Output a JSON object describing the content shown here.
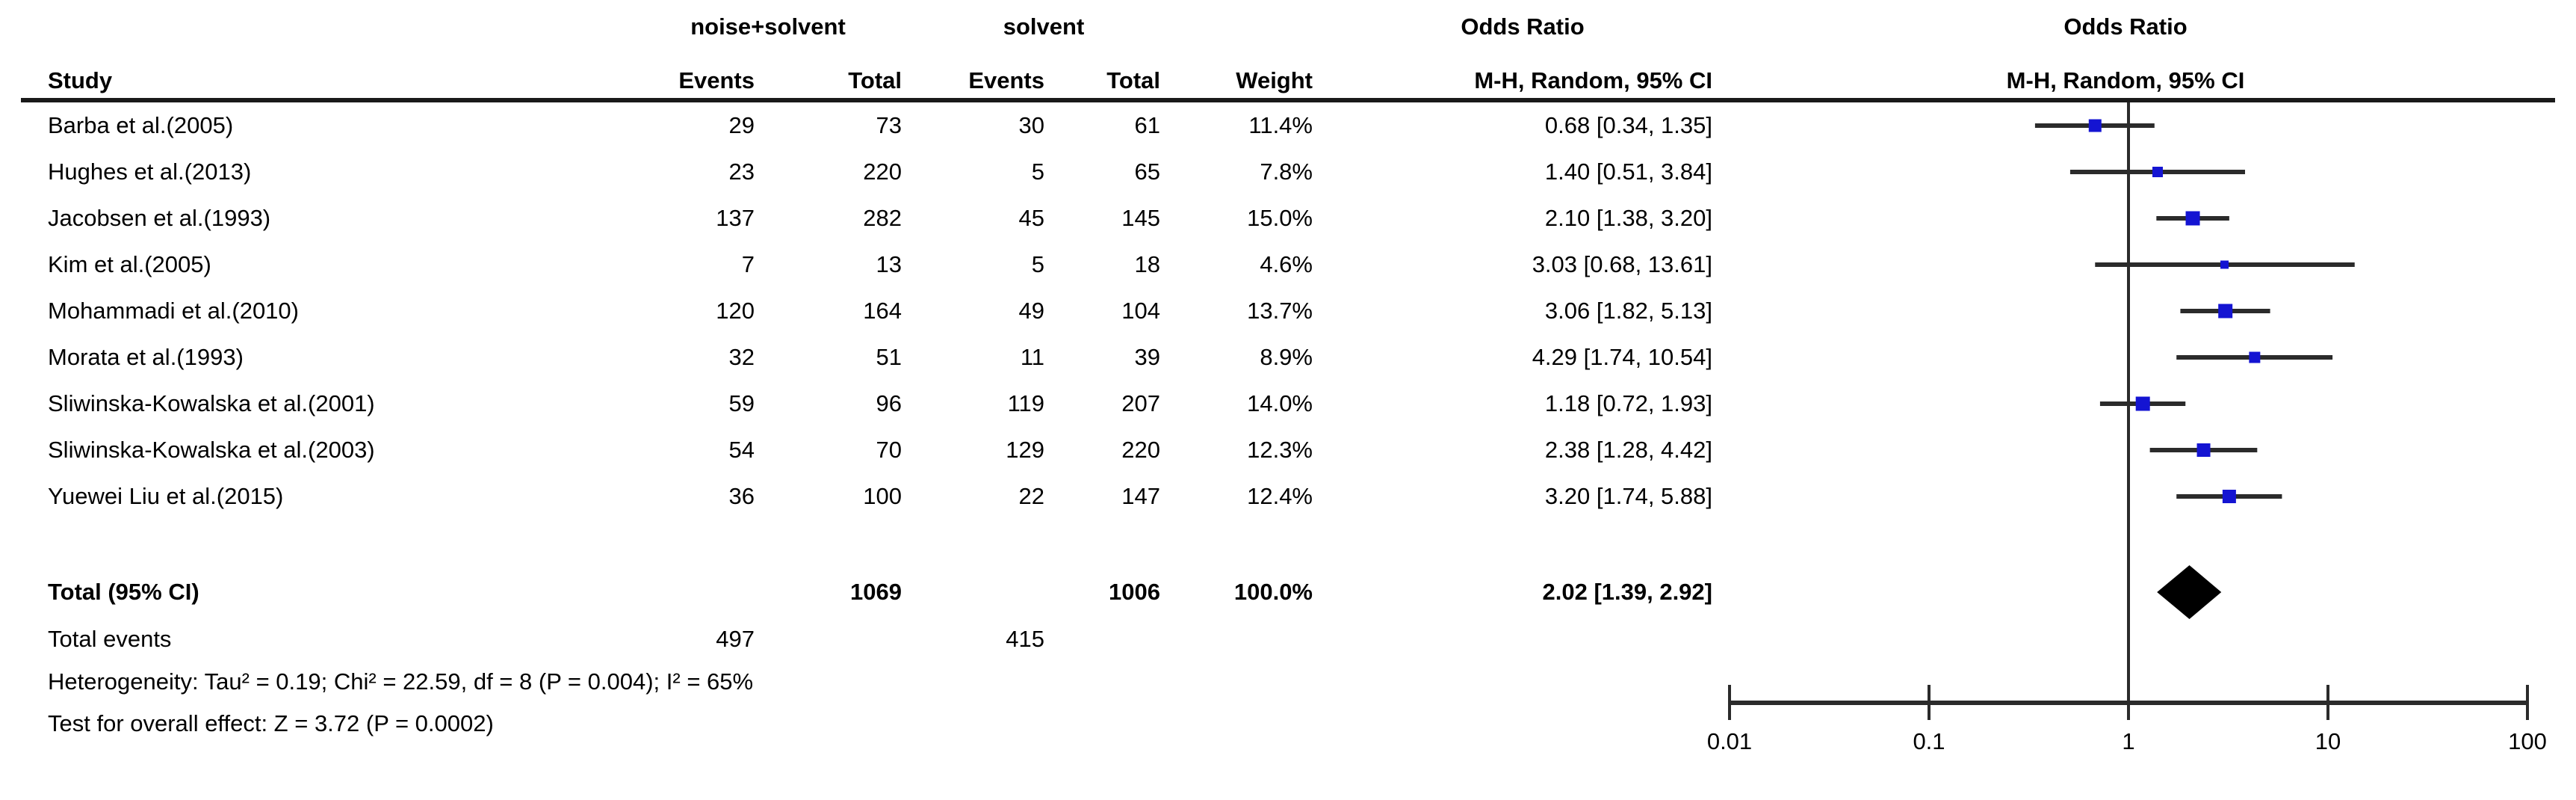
{
  "colors": {
    "marker_blue": "#1414d2",
    "ci_line": "#2b2b2b",
    "diamond": "#000000",
    "text": "#000000",
    "background": "#ffffff"
  },
  "header": {
    "group1_label": "noise+solvent",
    "group2_label": "solvent",
    "odds_ratio_left": "Odds Ratio",
    "odds_ratio_right": "Odds Ratio",
    "method_left": "M-H, Random, 95% CI",
    "method_right": "M-H, Random, 95% CI",
    "study_col": "Study",
    "events_col_1": "Events",
    "total_col_1": "Total",
    "events_col_2": "Events",
    "total_col_2": "Total",
    "weight_col": "Weight"
  },
  "chart_data": {
    "type": "forest",
    "effect_measure": "Odds Ratio, M-H, Random, 95% CI",
    "x_axis": {
      "scale": "log10",
      "ticks": [
        0.01,
        0.1,
        1,
        10,
        100
      ],
      "tick_labels": [
        "0.01",
        "0.1",
        "1",
        "10",
        "100"
      ],
      "null_line": 1
    },
    "studies": [
      {
        "name": "Barba et al.(2005)",
        "events1": "29",
        "total1": "73",
        "events2": "30",
        "total2": "61",
        "weight": "11.4%",
        "weight_pct": 11.4,
        "or": 0.68,
        "ci_low": 0.34,
        "ci_high": 1.35,
        "or_text": "0.68 [0.34, 1.35]"
      },
      {
        "name": "Hughes et al.(2013)",
        "events1": "23",
        "total1": "220",
        "events2": "5",
        "total2": "65",
        "weight": "7.8%",
        "weight_pct": 7.8,
        "or": 1.4,
        "ci_low": 0.51,
        "ci_high": 3.84,
        "or_text": "1.40 [0.51, 3.84]"
      },
      {
        "name": "Jacobsen et al.(1993)",
        "events1": "137",
        "total1": "282",
        "events2": "45",
        "total2": "145",
        "weight": "15.0%",
        "weight_pct": 15.0,
        "or": 2.1,
        "ci_low": 1.38,
        "ci_high": 3.2,
        "or_text": "2.10 [1.38, 3.20]"
      },
      {
        "name": "Kim et al.(2005)",
        "events1": "7",
        "total1": "13",
        "events2": "5",
        "total2": "18",
        "weight": "4.6%",
        "weight_pct": 4.6,
        "or": 3.03,
        "ci_low": 0.68,
        "ci_high": 13.61,
        "or_text": "3.03 [0.68, 13.61]"
      },
      {
        "name": "Mohammadi et al.(2010)",
        "events1": "120",
        "total1": "164",
        "events2": "49",
        "total2": "104",
        "weight": "13.7%",
        "weight_pct": 13.7,
        "or": 3.06,
        "ci_low": 1.82,
        "ci_high": 5.13,
        "or_text": "3.06 [1.82, 5.13]"
      },
      {
        "name": "Morata et al.(1993)",
        "events1": "32",
        "total1": "51",
        "events2": "11",
        "total2": "39",
        "weight": "8.9%",
        "weight_pct": 8.9,
        "or": 4.29,
        "ci_low": 1.74,
        "ci_high": 10.54,
        "or_text": "4.29 [1.74, 10.54]"
      },
      {
        "name": "Sliwinska-Kowalska et al.(2001)",
        "events1": "59",
        "total1": "96",
        "events2": "119",
        "total2": "207",
        "weight": "14.0%",
        "weight_pct": 14.0,
        "or": 1.18,
        "ci_low": 0.72,
        "ci_high": 1.93,
        "or_text": "1.18 [0.72, 1.93]"
      },
      {
        "name": "Sliwinska-Kowalska et al.(2003)",
        "events1": "54",
        "total1": "70",
        "events2": "129",
        "total2": "220",
        "weight": "12.3%",
        "weight_pct": 12.3,
        "or": 2.38,
        "ci_low": 1.28,
        "ci_high": 4.42,
        "or_text": "2.38 [1.28, 4.42]"
      },
      {
        "name": "Yuewei Liu et al.(2015)",
        "events1": "36",
        "total1": "100",
        "events2": "22",
        "total2": "147",
        "weight": "12.4%",
        "weight_pct": 12.4,
        "or": 3.2,
        "ci_low": 1.74,
        "ci_high": 5.88,
        "or_text": "3.20 [1.74, 5.88]"
      }
    ],
    "total": {
      "label": "Total (95% CI)",
      "total1": "1069",
      "total2": "1006",
      "weight": "100.0%",
      "or": 2.02,
      "ci_low": 1.39,
      "ci_high": 2.92,
      "or_text": "2.02 [1.39, 2.92]"
    },
    "total_events": {
      "label": "Total events",
      "events1": "497",
      "events2": "415"
    },
    "heterogeneity": "Heterogeneity: Tau² = 0.19; Chi² = 22.59, df = 8 (P = 0.004); I² = 65%",
    "overall_effect": "Test for overall effect: Z = 3.72 (P = 0.0002)"
  }
}
